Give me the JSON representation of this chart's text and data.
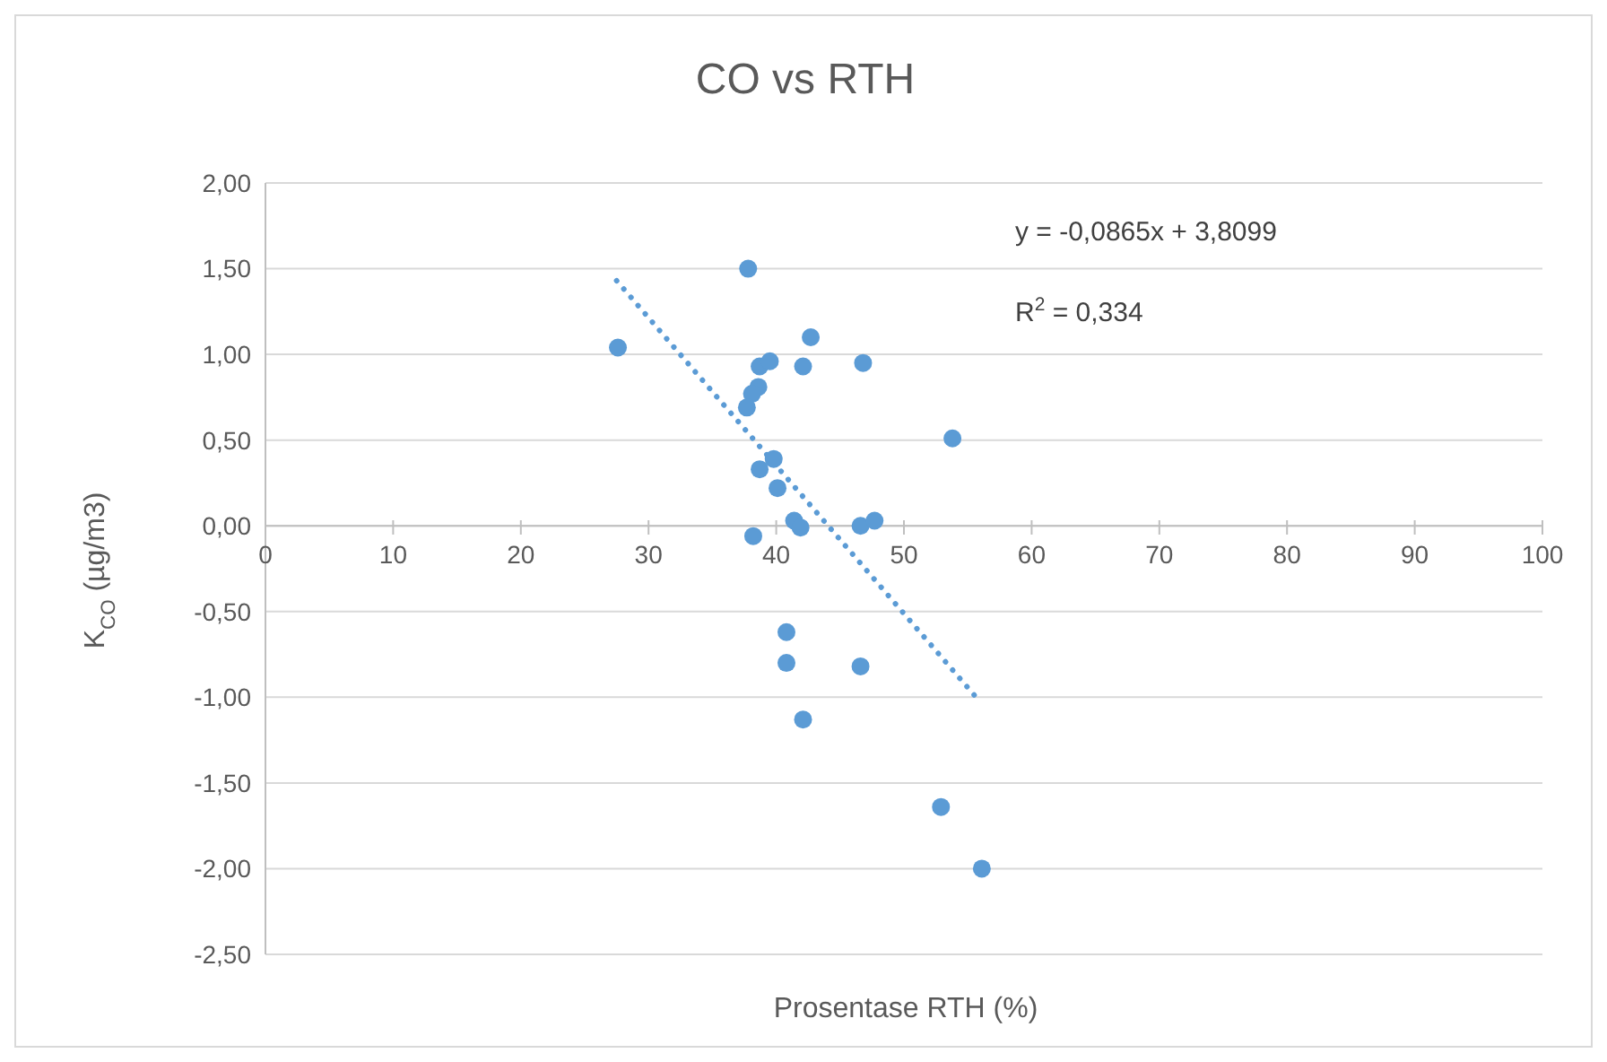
{
  "chart_data": {
    "type": "scatter",
    "title": "CO vs RTH",
    "xlabel": "Prosentase RTH (%)",
    "ylabel": "K$_{CO}$ (µg/m3)",
    "xlim": [
      0,
      100
    ],
    "xticks": [
      0,
      10,
      20,
      30,
      40,
      50,
      60,
      70,
      80,
      90,
      100
    ],
    "ylim": [
      -2.5,
      2
    ],
    "yticks": [
      {
        "value": -2.5,
        "label": "-2,50"
      },
      {
        "value": -2,
        "label": "-2,00"
      },
      {
        "value": -1.5,
        "label": "-1,50"
      },
      {
        "value": -1,
        "label": "-1,00"
      },
      {
        "value": -0.5,
        "label": "-0,50"
      },
      {
        "value": 0,
        "label": "0,00"
      },
      {
        "value": 0.5,
        "label": "0,50"
      },
      {
        "value": 1,
        "label": "1,00"
      },
      {
        "value": 1.5,
        "label": "1,50"
      },
      {
        "value": 2,
        "label": "2,00"
      }
    ],
    "grid": "y",
    "legend": false,
    "marker": "circle",
    "series": [
      {
        "color": "#5b9bd5",
        "x": [
          27.6,
          37.8,
          42.7,
          38.7,
          39.5,
          42.1,
          46.8,
          38.6,
          38.1,
          37.7,
          53.8,
          39.8,
          38.7,
          40.1,
          41.4,
          41.9,
          46.6,
          47.7,
          38.2,
          40.8,
          40.8,
          46.6,
          42.1,
          52.9,
          56.1
        ],
        "values": [
          1.04,
          1.5,
          1.1,
          0.93,
          0.96,
          0.93,
          0.95,
          0.81,
          0.77,
          0.69,
          0.51,
          0.39,
          0.33,
          0.22,
          0.03,
          -0.01,
          0,
          0.03,
          -0.06,
          -0.62,
          -0.8,
          -0.82,
          -1.13,
          -1.64,
          -2
        ]
      },
      {
        "type": "line",
        "color": "#5b9bd5",
        "line_style": "dotted",
        "marker": "none",
        "x": [
          27.5,
          56
        ],
        "values": [
          1.43,
          -1.03
        ]
      }
    ],
    "annotations": [
      "y = -0,0865x + 3,8099",
      "R$^{2}$ = 0,334"
    ]
  }
}
